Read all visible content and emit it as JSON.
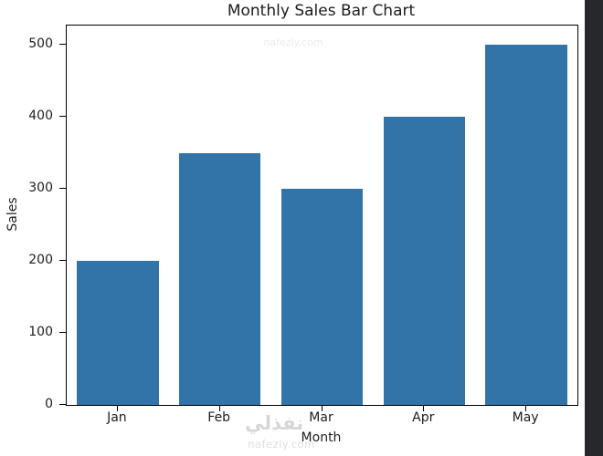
{
  "window": {
    "background_color": "#ffffff",
    "edge_strip_color": "#27282b"
  },
  "chart_data": {
    "type": "bar",
    "title": "Monthly Sales Bar Chart",
    "xlabel": "Month",
    "ylabel": "Sales",
    "categories": [
      "Jan",
      "Feb",
      "Mar",
      "Apr",
      "May"
    ],
    "values": [
      200,
      350,
      300,
      400,
      500
    ],
    "yticks": [
      0,
      100,
      200,
      300,
      400,
      500
    ],
    "ylim": [
      0,
      527
    ],
    "bar_color": "#3274a8",
    "grid": false,
    "legend": "none"
  },
  "watermark": {
    "logo_text": "نفذلي",
    "site_text": "nafezly.com"
  }
}
